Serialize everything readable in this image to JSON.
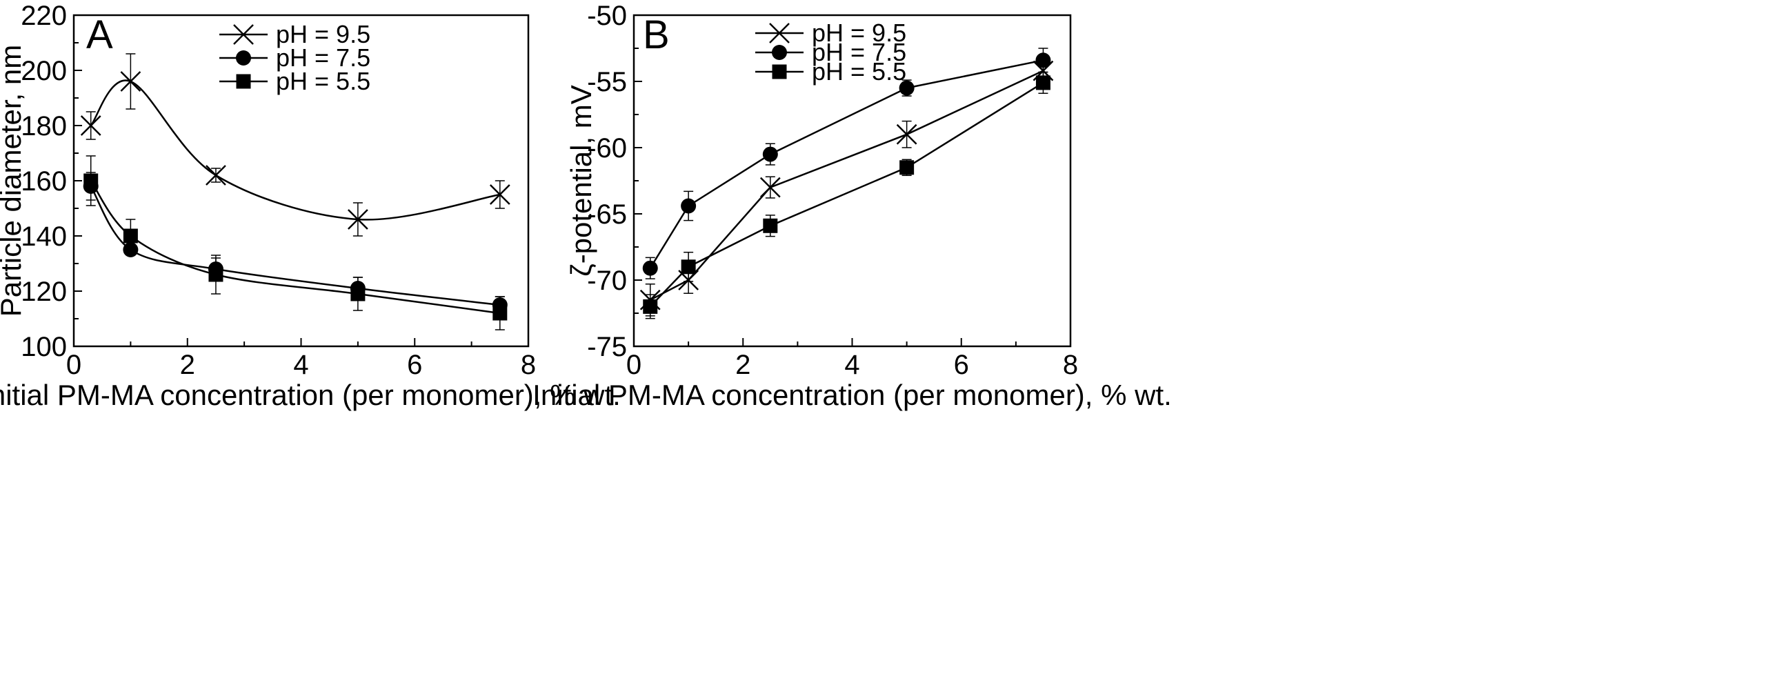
{
  "chart_data": [
    {
      "type": "line",
      "panel_label": "A",
      "xlabel": "Initial PM-MA concentration (per monomer), % wt.",
      "ylabel": "Particle diameter, nm",
      "xlim": [
        0,
        8
      ],
      "ylim": [
        100,
        220
      ],
      "xticks": [
        0,
        2,
        4,
        6,
        8
      ],
      "yticks": [
        100,
        120,
        140,
        160,
        180,
        200,
        220
      ],
      "x": [
        0.3,
        1,
        2.5,
        5,
        7.5
      ],
      "legend_position": "top-center",
      "series": [
        {
          "name": "pH = 9.5",
          "marker": "cross",
          "values": [
            180,
            196,
            162,
            146,
            155
          ],
          "errors": [
            5,
            10,
            2.5,
            6,
            5
          ]
        },
        {
          "name": "pH = 7.5",
          "marker": "circle",
          "values": [
            158,
            135,
            128,
            121,
            115
          ],
          "errors": [
            5,
            1.5,
            4,
            4,
            3
          ]
        },
        {
          "name": "pH = 5.5",
          "marker": "square",
          "values": [
            160,
            140,
            126,
            119,
            112
          ],
          "errors": [
            9,
            6,
            7,
            6,
            6
          ]
        }
      ]
    },
    {
      "type": "line",
      "panel_label": "B",
      "xlabel": "Initial PM-MA concentration (per monomer), % wt.",
      "ylabel": "ζ-potential, mV",
      "xlim": [
        0,
        8
      ],
      "ylim": [
        -75,
        -50
      ],
      "xticks": [
        0,
        2,
        4,
        6,
        8
      ],
      "yticks": [
        -75,
        -70,
        -65,
        -60,
        -55,
        -50
      ],
      "x": [
        0.3,
        1,
        2.5,
        5,
        7.5
      ],
      "legend_position": "top-left",
      "series": [
        {
          "name": "pH = 9.5",
          "marker": "cross",
          "values": [
            -71.5,
            -70,
            -63,
            -59,
            -54.2
          ],
          "errors": [
            1.2,
            1,
            0.8,
            1,
            0.8
          ]
        },
        {
          "name": "pH = 7.5",
          "marker": "circle",
          "values": [
            -69.1,
            -64.4,
            -60.5,
            -55.5,
            -53.4
          ],
          "errors": [
            0.8,
            1.1,
            0.8,
            0.6,
            0.9
          ]
        },
        {
          "name": "pH = 5.5",
          "marker": "square",
          "values": [
            -72,
            -69,
            -65.9,
            -61.5,
            -55.1
          ],
          "errors": [
            0.9,
            1.1,
            0.8,
            0.6,
            0.8
          ]
        }
      ]
    }
  ]
}
